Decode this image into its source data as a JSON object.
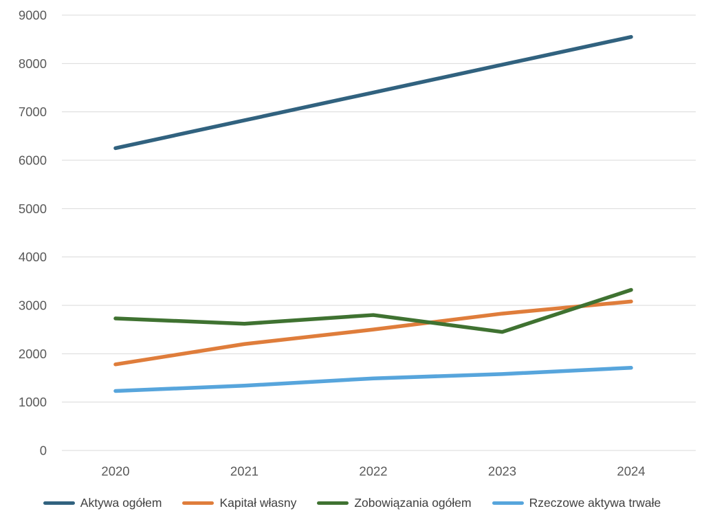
{
  "chart_data": {
    "type": "line",
    "title": "",
    "xlabel": "",
    "ylabel": "",
    "categories": [
      "2020",
      "2021",
      "2022",
      "2023",
      "2024"
    ],
    "series": [
      {
        "name": "Aktywa ogółem",
        "color": "#31627F",
        "values": [
          6250,
          6825,
          7400,
          7975,
          8550
        ]
      },
      {
        "name": "Kapitał własny",
        "color": "#DF7D3B",
        "values": [
          1780,
          2200,
          2500,
          2830,
          3080
        ]
      },
      {
        "name": "Zobowiązania ogółem",
        "color": "#3F7231",
        "values": [
          2730,
          2620,
          2800,
          2450,
          3320
        ]
      },
      {
        "name": "Rzeczowe aktywa trwałe",
        "color": "#57A5DC",
        "values": [
          1230,
          1340,
          1490,
          1580,
          1710
        ]
      }
    ],
    "ylim": [
      0,
      9000
    ],
    "yticks": [
      0,
      1000,
      2000,
      3000,
      4000,
      5000,
      6000,
      7000,
      8000,
      9000
    ],
    "grid": true,
    "legend_position": "bottom",
    "colors": {
      "background": "#FFFFFF",
      "gridline": "#D9D9D9",
      "axis_labels": "#595959",
      "legend_text": "#404040"
    }
  }
}
